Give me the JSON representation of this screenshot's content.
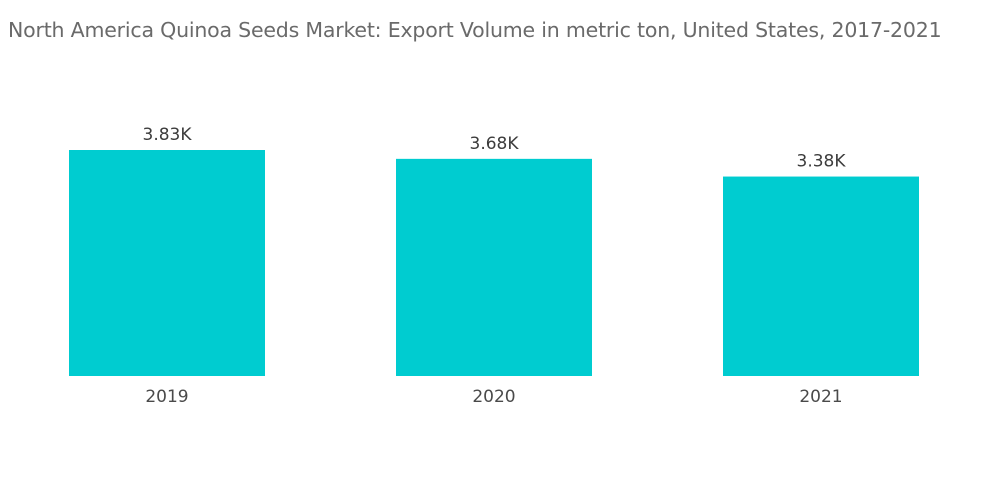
{
  "chart_data": {
    "type": "bar",
    "title": "North America Quinoa Seeds Market: Export Volume in metric ton, United States, 2017-2021",
    "categories": [
      "2019",
      "2020",
      "2021"
    ],
    "values": [
      3.83,
      3.68,
      3.38
    ],
    "value_labels": [
      "3.83K",
      "3.68K",
      "3.38K"
    ],
    "units": "thousand metric tons",
    "xlabel": "",
    "ylabel": "",
    "ylim": [
      0,
      3.83
    ],
    "grid": false,
    "legend": "none",
    "bar_color": "#00ccd0"
  }
}
